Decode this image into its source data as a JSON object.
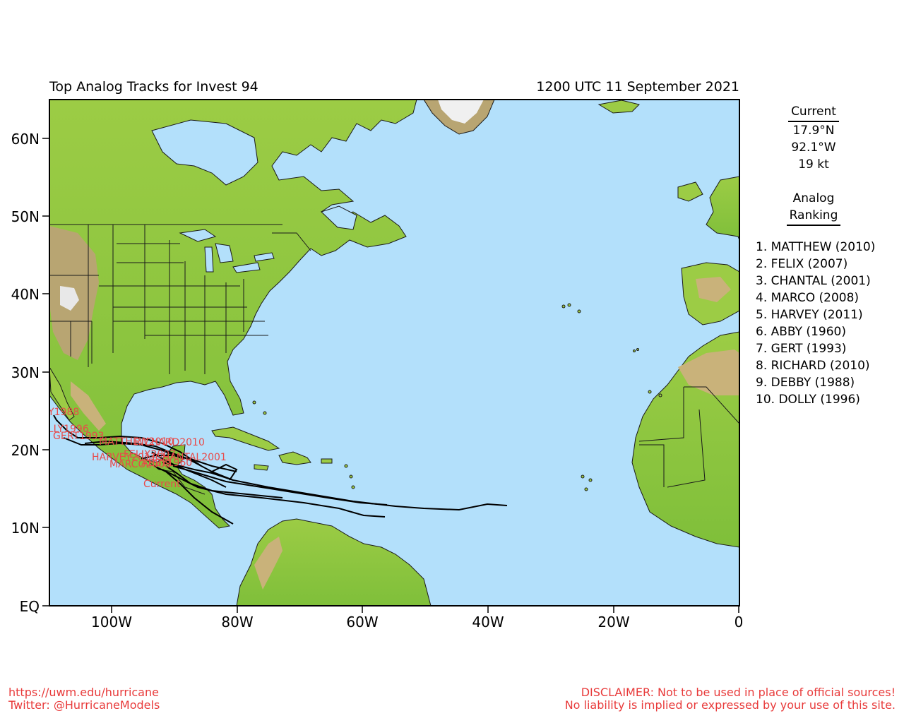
{
  "header": {
    "title": "Top Analog Tracks for Invest 94",
    "time": "1200 UTC 11 September 2021"
  },
  "axes": {
    "lat_labels": [
      "60N",
      "50N",
      "40N",
      "30N",
      "20N",
      "10N",
      "EQ"
    ],
    "lon_labels": [
      "100W",
      "80W",
      "60W",
      "40W",
      "20W",
      "0"
    ]
  },
  "current": {
    "heading": "Current",
    "lat": "17.9°N",
    "lon": "92.1°W",
    "wind": "19 kt",
    "marker_label": "Current"
  },
  "ranking": {
    "heading_line1": "Analog",
    "heading_line2": "Ranking",
    "items": [
      "1.  MATTHEW (2010)",
      "2.  FELIX (2007)",
      "3.  CHANTAL (2001)",
      "4.  MARCO (2008)",
      "5.  HARVEY (2011)",
      "6.  ABBY (1960)",
      "7.  GERT (1993)",
      "8.  RICHARD (2010)",
      "9.  DEBBY (1988)",
      "10. DOLLY (1996)"
    ]
  },
  "track_labels": [
    "DEBBY1988",
    "DOLLY1996",
    "GERT1993",
    "RICHARD2010",
    "MATTHEW2010",
    "CHANTAL2001",
    "HARVEY2011",
    "MARCO2008",
    "FELIX2007",
    "ABBY1960"
  ],
  "colors": {
    "ocean": "#b3e0fb",
    "land": "#8cc63f",
    "mountain": "#b8a572",
    "snow": "#e8e8e8",
    "track": "#000000",
    "label": "#e84a4a",
    "footer": "#e83a3a"
  },
  "footer": {
    "url": "https://uwm.edu/hurricane",
    "twitter": "Twitter: @HurricaneModels",
    "disclaimer1": "DISCLAIMER: Not to be used in place of official sources!",
    "disclaimer2": "No liability is implied or expressed by your use of this site."
  }
}
